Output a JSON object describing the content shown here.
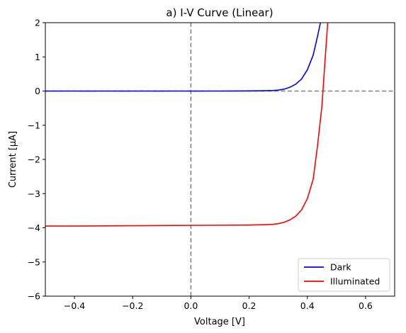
{
  "chart_data": {
    "type": "line",
    "title": "a) I-V Curve (Linear)",
    "xlabel": "Voltage [V]",
    "ylabel": "Current [μA]",
    "xlim": [
      -0.5,
      0.7
    ],
    "ylim": [
      -6,
      2
    ],
    "x_ticks": [
      -0.4,
      -0.2,
      0.0,
      0.2,
      0.4,
      0.6
    ],
    "x_tick_labels": [
      "−0.4",
      "−0.2",
      "0.0",
      "0.2",
      "0.4",
      "0.6"
    ],
    "y_ticks": [
      -6,
      -5,
      -4,
      -3,
      -2,
      -1,
      0,
      1,
      2
    ],
    "y_tick_labels": [
      "−6",
      "−5",
      "−4",
      "−3",
      "−2",
      "−1",
      "0",
      "1",
      "2"
    ],
    "grid": false,
    "legend_position": "lower-right",
    "reference_lines": [
      {
        "orientation": "horizontal",
        "value": 0,
        "style": "dashed",
        "color": "#808080"
      },
      {
        "orientation": "vertical",
        "value": 0,
        "style": "dashed",
        "color": "#808080"
      }
    ],
    "series": [
      {
        "name": "Dark",
        "color": "#0000ff",
        "x": [
          -0.5,
          -0.4,
          -0.3,
          -0.2,
          -0.1,
          0.0,
          0.1,
          0.2,
          0.25,
          0.28,
          0.3,
          0.32,
          0.34,
          0.36,
          0.38,
          0.4,
          0.42,
          0.435,
          0.445
        ],
        "y": [
          0.0,
          0.0,
          0.0,
          0.0,
          0.0,
          0.0,
          0.0,
          0.003,
          0.008,
          0.015,
          0.028,
          0.055,
          0.11,
          0.2,
          0.35,
          0.62,
          1.05,
          1.6,
          2.0
        ]
      },
      {
        "name": "Illuminated",
        "color": "#ff0000",
        "x": [
          -0.5,
          -0.4,
          -0.3,
          -0.2,
          -0.1,
          0.0,
          0.1,
          0.2,
          0.25,
          0.28,
          0.3,
          0.32,
          0.34,
          0.36,
          0.38,
          0.4,
          0.42,
          0.435,
          0.45,
          0.46,
          0.47
        ],
        "y": [
          -3.95,
          -3.95,
          -3.945,
          -3.94,
          -3.935,
          -3.93,
          -3.925,
          -3.92,
          -3.91,
          -3.9,
          -3.88,
          -3.84,
          -3.77,
          -3.66,
          -3.48,
          -3.15,
          -2.58,
          -1.6,
          -0.45,
          0.8,
          2.0
        ]
      }
    ]
  }
}
